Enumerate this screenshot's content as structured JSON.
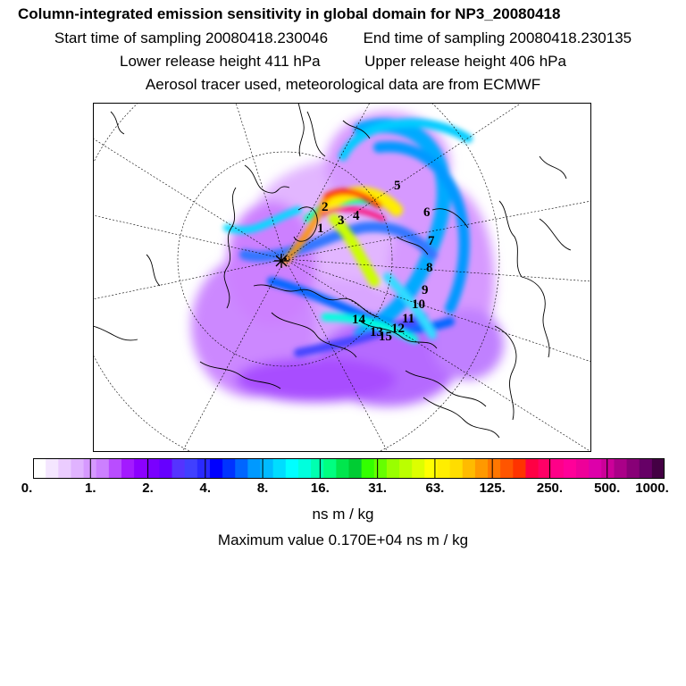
{
  "header": {
    "title": "Column-integrated emission sensitivity in global domain for NP3_20080418",
    "start_label": "Start time of sampling 20080418.230046",
    "end_label": "End time of sampling 20080418.230135",
    "lower_label": "Lower release height  411 hPa",
    "upper_label": "Upper release height  406 hPa",
    "tracer_line": "Aerosol tracer used, meteorological data are from ECMWF"
  },
  "map": {
    "release_marker": "star-icon",
    "trajectory_labels": [
      "1",
      "2",
      "3",
      "4",
      "5",
      "6",
      "7",
      "8",
      "9",
      "10",
      "11",
      "12",
      "13",
      "14",
      "15"
    ]
  },
  "legend": {
    "colors": [
      "#ffffff",
      "#f4e6ff",
      "#ebccff",
      "#e0b3ff",
      "#d699ff",
      "#cc80ff",
      "#b94dff",
      "#a31aff",
      "#8c00ff",
      "#7a00ff",
      "#6600ff",
      "#5533ff",
      "#4040ff",
      "#2a2aff",
      "#0000ff",
      "#0033ff",
      "#0066ff",
      "#0099ff",
      "#00bbff",
      "#00ddff",
      "#00ffff",
      "#00ffdd",
      "#00ffb0",
      "#00ff80",
      "#00e64d",
      "#00cc33",
      "#33ff00",
      "#66ff00",
      "#99ff00",
      "#bbff00",
      "#ddff00",
      "#ffff00",
      "#ffee00",
      "#ffdd00",
      "#ffbb00",
      "#ff9900",
      "#ff7700",
      "#ff5500",
      "#ff3300",
      "#ff0044",
      "#ff0066",
      "#ff0088",
      "#ff0099",
      "#ee0099",
      "#dd00aa",
      "#cc0099",
      "#aa0088",
      "#880077",
      "#660066",
      "#440044"
    ],
    "ticks": [
      "0.",
      "1.",
      "2.",
      "4.",
      "8.",
      "16.",
      "31.",
      "63.",
      "125.",
      "250.",
      "500.",
      "1000."
    ],
    "unit": "ns m / kg",
    "max_value_label": "Maximum value  0.170E+04 ns m / kg"
  }
}
